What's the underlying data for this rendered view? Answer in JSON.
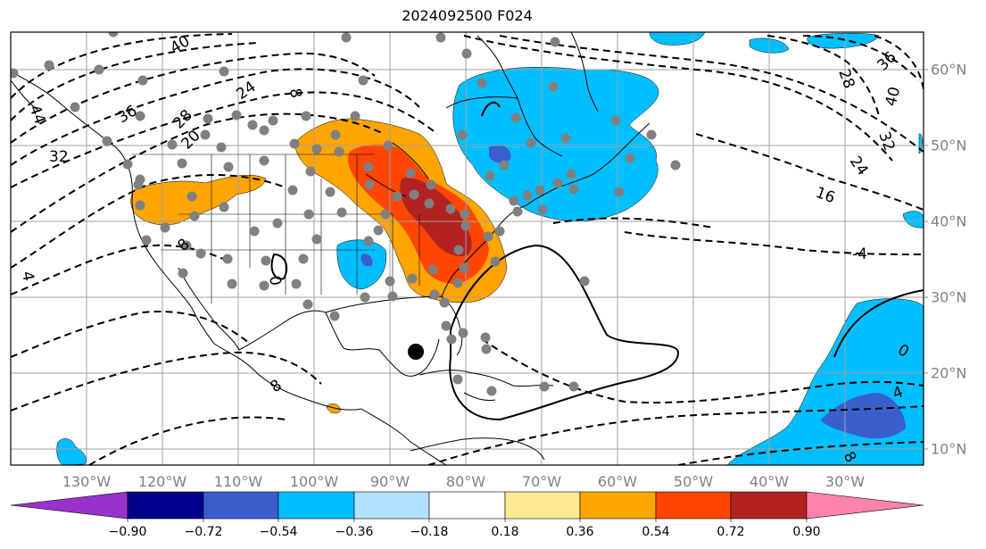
{
  "title": "2024092500 F024",
  "lat_labels": [
    "60°N",
    "50°N",
    "40°N",
    "30°N",
    "20°N",
    "10°N"
  ],
  "lon_labels": [
    "130°W",
    "120°W",
    "110°W",
    "100°W",
    "90°W",
    "80°W",
    "70°W",
    "60°W",
    "50°W",
    "40°W",
    "30°W"
  ],
  "contour_labels": [
    "40",
    "36",
    "24",
    "28",
    "44",
    "32",
    "20",
    "36",
    "40",
    "28",
    "32",
    "24",
    "16",
    "-4",
    "0",
    "4",
    "8",
    "8",
    "8",
    "0",
    "4",
    "8"
  ],
  "colorbar": {
    "ticks": [
      "−0.90",
      "−0.72",
      "−0.54",
      "−0.36",
      "−0.18",
      "0.18",
      "0.36",
      "0.54",
      "0.72",
      "0.90"
    ],
    "colors": [
      "#9932cc",
      "#00008b",
      "#3a5fcd",
      "#00bfff",
      "#b0e2ff",
      "#ffffff",
      "#fde98f",
      "#ffa500",
      "#ff4500",
      "#b22222",
      "#ff82ab"
    ]
  },
  "legend_colors": {
    "strong_negative": "#3a5fcd",
    "negative": "#00bfff",
    "moderate_positive": "#ffa500",
    "strong_positive": "#ff4500",
    "very_strong_positive": "#b22222"
  }
}
